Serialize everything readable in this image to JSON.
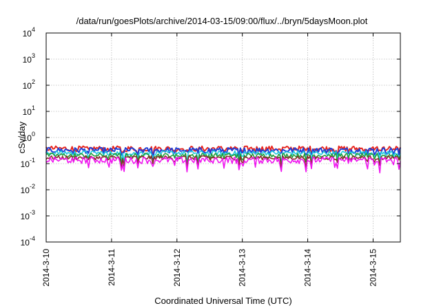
{
  "chart_data": {
    "type": "line",
    "title": "/data/run/goesPlots/archive/2014-03-15/09:00/flux/../bryn/5daysMoon.plot",
    "xlabel": "Coordinated Universal Time (UTC)",
    "ylabel": "cSv/day",
    "y_scale": "log",
    "ylim": [
      0.0001,
      10000
    ],
    "y_ticks": [
      {
        "base": "10",
        "exp": "4"
      },
      {
        "base": "10",
        "exp": "3"
      },
      {
        "base": "10",
        "exp": "2"
      },
      {
        "base": "10",
        "exp": "1"
      },
      {
        "base": "10",
        "exp": "0"
      },
      {
        "base": "10",
        "exp": "-1"
      },
      {
        "base": "10",
        "exp": "-2"
      },
      {
        "base": "10",
        "exp": "-3"
      },
      {
        "base": "10",
        "exp": "-4"
      }
    ],
    "xlim": [
      "2014-03-10T00:00",
      "2014-03-15T10:00"
    ],
    "x_ticks": [
      "2014-3-10",
      "2014-3-11",
      "2014-3-12",
      "2014-3-13",
      "2014-3-14",
      "2014-3-15"
    ],
    "grid": true,
    "series": [
      {
        "color": "#e8251e",
        "base": 0.38,
        "amp": 0.09
      },
      {
        "color": "#1f3fd6",
        "base": 0.33,
        "amp": 0.08
      },
      {
        "color": "#1ec8e0",
        "base": 0.26,
        "amp": 0.05
      },
      {
        "color": "#1f9e3a",
        "base": 0.21,
        "amp": 0.04
      },
      {
        "color": "#8a2a2a",
        "base": 0.17,
        "amp": 0.03
      },
      {
        "color": "#ef14ef",
        "base": 0.14,
        "amp": 0.04
      }
    ]
  }
}
